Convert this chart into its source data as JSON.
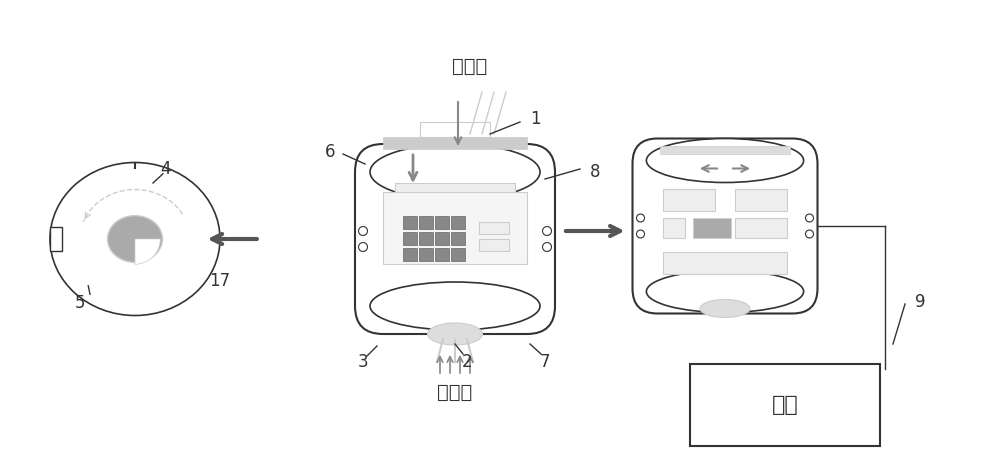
{
  "bg_color": "#ffffff",
  "line_color": "#333333",
  "gray_color": "#888888",
  "light_gray": "#cccccc",
  "dark_gray": "#666666",
  "arrow_color": "#555555",
  "labels": {
    "direct_light": "直射光",
    "diffuse_light": "散射光",
    "soil": "土层",
    "num_1": "1",
    "num_2": "2",
    "num_3": "3",
    "num_4": "4",
    "num_5": "5",
    "num_6": "6",
    "num_7": "7",
    "num_8": "8",
    "num_9": "9",
    "num_17": "17"
  }
}
